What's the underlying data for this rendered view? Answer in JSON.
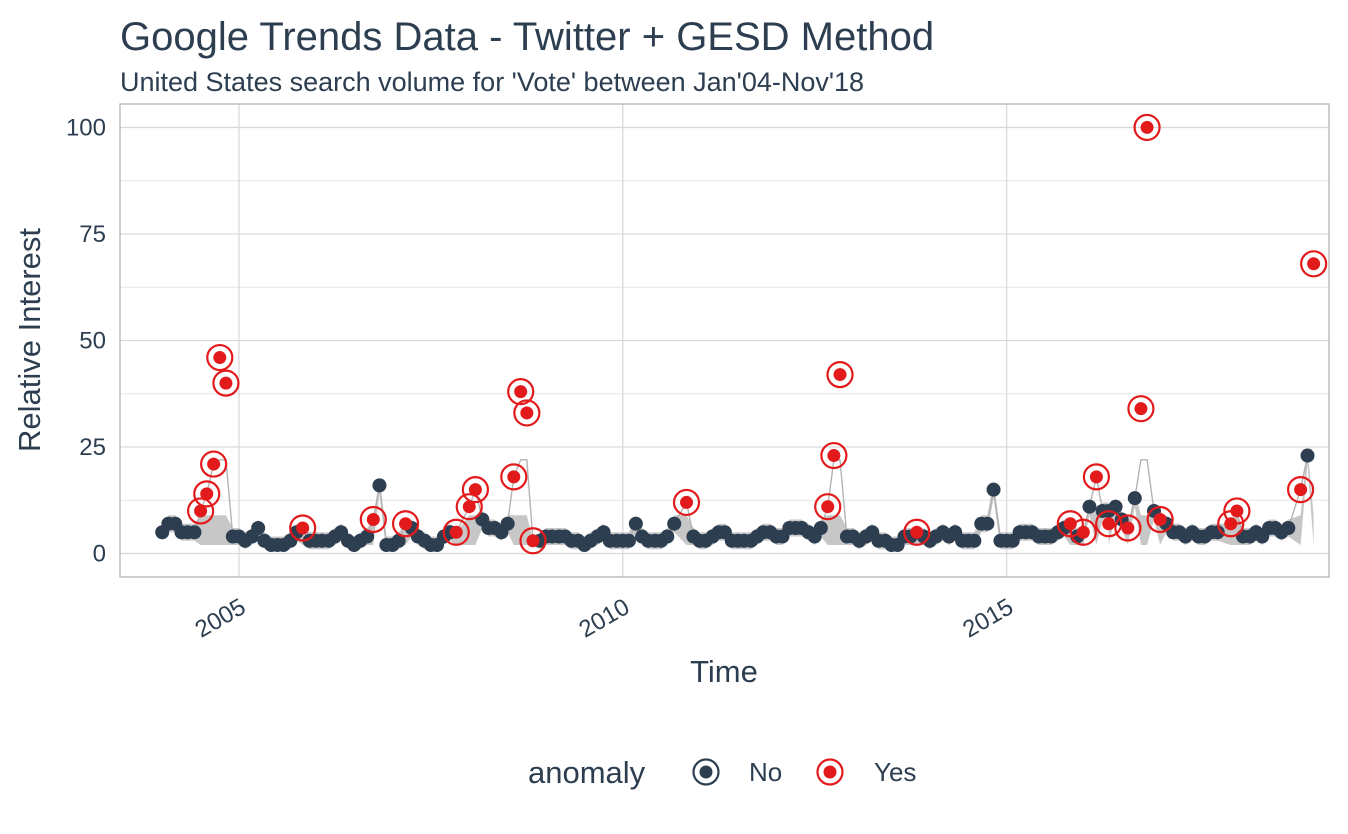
{
  "chart_data": {
    "type": "scatter",
    "title": "Google Trends Data - Twitter + GESD Method",
    "subtitle": "United States search volume for 'Vote' between Jan'04-Nov'18",
    "xlabel": "Time",
    "ylabel": "Relative Interest",
    "xlim": [
      2003.45,
      2019.2
    ],
    "ylim": [
      -5.5,
      105.5
    ],
    "x_ticks": [
      2005,
      2010,
      2015
    ],
    "x_tick_labels": [
      "2005",
      "2010",
      "2015"
    ],
    "y_ticks": [
      0,
      25,
      50,
      75,
      100
    ],
    "y_tick_labels": [
      "0",
      "25",
      "50",
      "75",
      "100"
    ],
    "grid": true,
    "legend": {
      "title": "anomaly",
      "position": "bottom",
      "entries": [
        {
          "label": "No",
          "color": "#2c3e50"
        },
        {
          "label": "Yes",
          "color": "#e31a1c"
        }
      ]
    },
    "colors": {
      "normal": "#2c3e50",
      "anomaly": "#e31a1c",
      "band": "#bdbdbd",
      "trend": "#b3b3b3"
    },
    "series": [
      {
        "name": "No",
        "points": [
          [
            2004.0,
            5
          ],
          [
            2004.08,
            7
          ],
          [
            2004.17,
            7
          ],
          [
            2004.25,
            5
          ],
          [
            2004.33,
            5
          ],
          [
            2004.42,
            5
          ],
          [
            2004.92,
            4
          ],
          [
            2005.0,
            4
          ],
          [
            2005.08,
            3
          ],
          [
            2005.17,
            4
          ],
          [
            2005.25,
            6
          ],
          [
            2005.33,
            3
          ],
          [
            2005.42,
            2
          ],
          [
            2005.5,
            2
          ],
          [
            2005.58,
            2
          ],
          [
            2005.67,
            3
          ],
          [
            2005.75,
            5
          ],
          [
            2005.92,
            3
          ],
          [
            2006.0,
            3
          ],
          [
            2006.08,
            3
          ],
          [
            2006.17,
            3
          ],
          [
            2006.25,
            4
          ],
          [
            2006.33,
            5
          ],
          [
            2006.42,
            3
          ],
          [
            2006.5,
            2
          ],
          [
            2006.58,
            3
          ],
          [
            2006.67,
            4
          ],
          [
            2006.83,
            16
          ],
          [
            2006.92,
            2
          ],
          [
            2007.0,
            2
          ],
          [
            2007.08,
            3
          ],
          [
            2007.25,
            6
          ],
          [
            2007.33,
            4
          ],
          [
            2007.42,
            3
          ],
          [
            2007.5,
            2
          ],
          [
            2007.58,
            2
          ],
          [
            2007.67,
            4
          ],
          [
            2007.75,
            5
          ],
          [
            2008.17,
            8
          ],
          [
            2008.25,
            6
          ],
          [
            2008.33,
            6
          ],
          [
            2008.42,
            5
          ],
          [
            2008.5,
            7
          ],
          [
            2008.92,
            3
          ],
          [
            2009.0,
            4
          ],
          [
            2009.08,
            4
          ],
          [
            2009.17,
            4
          ],
          [
            2009.25,
            4
          ],
          [
            2009.33,
            3
          ],
          [
            2009.42,
            3
          ],
          [
            2009.5,
            2
          ],
          [
            2009.58,
            3
          ],
          [
            2009.67,
            4
          ],
          [
            2009.75,
            5
          ],
          [
            2009.83,
            3
          ],
          [
            2009.92,
            3
          ],
          [
            2010.0,
            3
          ],
          [
            2010.08,
            3
          ],
          [
            2010.17,
            7
          ],
          [
            2010.25,
            4
          ],
          [
            2010.33,
            3
          ],
          [
            2010.42,
            3
          ],
          [
            2010.5,
            3
          ],
          [
            2010.58,
            4
          ],
          [
            2010.67,
            7
          ],
          [
            2010.92,
            4
          ],
          [
            2011.0,
            3
          ],
          [
            2011.08,
            3
          ],
          [
            2011.17,
            4
          ],
          [
            2011.25,
            5
          ],
          [
            2011.33,
            5
          ],
          [
            2011.42,
            3
          ],
          [
            2011.5,
            3
          ],
          [
            2011.58,
            3
          ],
          [
            2011.67,
            3
          ],
          [
            2011.75,
            4
          ],
          [
            2011.83,
            5
          ],
          [
            2011.92,
            5
          ],
          [
            2012.0,
            4
          ],
          [
            2012.08,
            4
          ],
          [
            2012.17,
            6
          ],
          [
            2012.25,
            6
          ],
          [
            2012.33,
            6
          ],
          [
            2012.42,
            5
          ],
          [
            2012.5,
            4
          ],
          [
            2012.58,
            6
          ],
          [
            2012.92,
            4
          ],
          [
            2013.0,
            4
          ],
          [
            2013.08,
            3
          ],
          [
            2013.17,
            4
          ],
          [
            2013.25,
            5
          ],
          [
            2013.33,
            3
          ],
          [
            2013.42,
            3
          ],
          [
            2013.5,
            2
          ],
          [
            2013.58,
            2
          ],
          [
            2013.67,
            4
          ],
          [
            2013.75,
            4
          ],
          [
            2013.92,
            4
          ],
          [
            2014.0,
            3
          ],
          [
            2014.08,
            4
          ],
          [
            2014.17,
            5
          ],
          [
            2014.25,
            4
          ],
          [
            2014.33,
            5
          ],
          [
            2014.42,
            3
          ],
          [
            2014.5,
            3
          ],
          [
            2014.58,
            3
          ],
          [
            2014.67,
            7
          ],
          [
            2014.75,
            7
          ],
          [
            2014.83,
            15
          ],
          [
            2014.92,
            3
          ],
          [
            2015.0,
            3
          ],
          [
            2015.08,
            3
          ],
          [
            2015.17,
            5
          ],
          [
            2015.25,
            5
          ],
          [
            2015.33,
            5
          ],
          [
            2015.42,
            4
          ],
          [
            2015.5,
            4
          ],
          [
            2015.58,
            4
          ],
          [
            2015.67,
            5
          ],
          [
            2015.75,
            6
          ],
          [
            2015.92,
            4
          ],
          [
            2016.08,
            11
          ],
          [
            2016.25,
            10
          ],
          [
            2016.33,
            10
          ],
          [
            2016.42,
            11
          ],
          [
            2016.5,
            8
          ],
          [
            2016.67,
            13
          ],
          [
            2016.92,
            10
          ],
          [
            2017.08,
            7
          ],
          [
            2017.17,
            5
          ],
          [
            2017.25,
            5
          ],
          [
            2017.33,
            4
          ],
          [
            2017.42,
            5
          ],
          [
            2017.5,
            4
          ],
          [
            2017.58,
            4
          ],
          [
            2017.67,
            5
          ],
          [
            2017.75,
            5
          ],
          [
            2018.08,
            4
          ],
          [
            2018.17,
            4
          ],
          [
            2018.25,
            5
          ],
          [
            2018.33,
            4
          ],
          [
            2018.42,
            6
          ],
          [
            2018.5,
            6
          ],
          [
            2018.58,
            5
          ],
          [
            2018.67,
            6
          ],
          [
            2018.92,
            23
          ]
        ]
      },
      {
        "name": "Yes",
        "points": [
          [
            2004.5,
            10
          ],
          [
            2004.58,
            14
          ],
          [
            2004.67,
            21
          ],
          [
            2004.75,
            46
          ],
          [
            2004.83,
            40
          ],
          [
            2005.83,
            6
          ],
          [
            2006.75,
            8
          ],
          [
            2007.17,
            7
          ],
          [
            2007.83,
            5
          ],
          [
            2008.0,
            11
          ],
          [
            2008.08,
            15
          ],
          [
            2008.58,
            18
          ],
          [
            2008.67,
            38
          ],
          [
            2008.75,
            33
          ],
          [
            2008.83,
            3
          ],
          [
            2010.83,
            12
          ],
          [
            2012.67,
            11
          ],
          [
            2012.75,
            23
          ],
          [
            2012.83,
            42
          ],
          [
            2013.83,
            5
          ],
          [
            2015.83,
            7
          ],
          [
            2016.0,
            5
          ],
          [
            2016.17,
            18
          ],
          [
            2016.33,
            7
          ],
          [
            2016.58,
            6
          ],
          [
            2016.75,
            34
          ],
          [
            2016.83,
            100
          ],
          [
            2017.0,
            8
          ],
          [
            2017.92,
            7
          ],
          [
            2018.0,
            10
          ],
          [
            2018.83,
            15
          ],
          [
            2019.0,
            68
          ]
        ]
      }
    ]
  }
}
